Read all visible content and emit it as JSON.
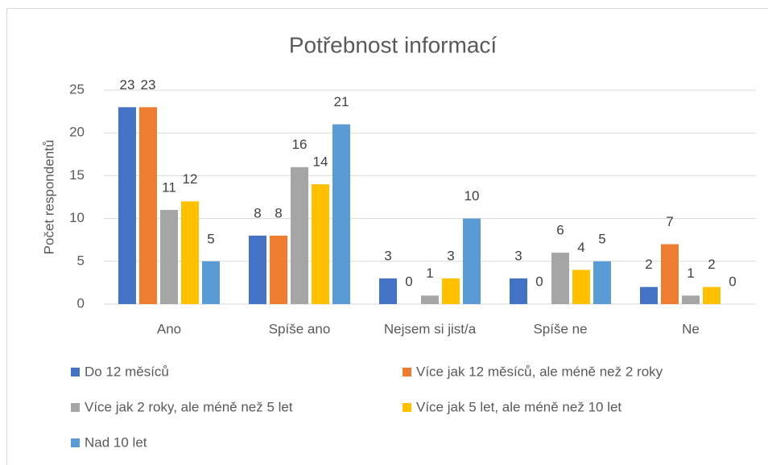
{
  "chart_data": {
    "type": "bar",
    "title": "Potřebnost informací",
    "y_label": "Počet respondentů",
    "categories": [
      "Ano",
      "Spíše ano",
      "Nejsem si jist/a",
      "Spíše ne",
      "Ne"
    ],
    "series": [
      {
        "name": "Do 12 měsíců",
        "color": "#4472c4",
        "values": [
          23,
          8,
          3,
          3,
          2
        ]
      },
      {
        "name": "Více jak 12 měsíců, ale méně než 2 roky",
        "color": "#ed7d31",
        "values": [
          23,
          8,
          0,
          0,
          7
        ]
      },
      {
        "name": "Více jak 2 roky, ale méně než 5 let",
        "color": "#a5a5a5",
        "values": [
          11,
          16,
          1,
          6,
          1
        ]
      },
      {
        "name": "Více jak 5 let, ale méně než 10 let",
        "color": "#ffc000",
        "values": [
          12,
          14,
          3,
          4,
          2
        ]
      },
      {
        "name": "Nad 10 let",
        "color": "#5b9bd5",
        "values": [
          5,
          21,
          10,
          5,
          0
        ]
      }
    ],
    "ylim": [
      0,
      25
    ],
    "yticks": [
      0,
      5,
      10,
      15,
      20,
      25
    ],
    "grid": true,
    "legend": "bottom"
  }
}
